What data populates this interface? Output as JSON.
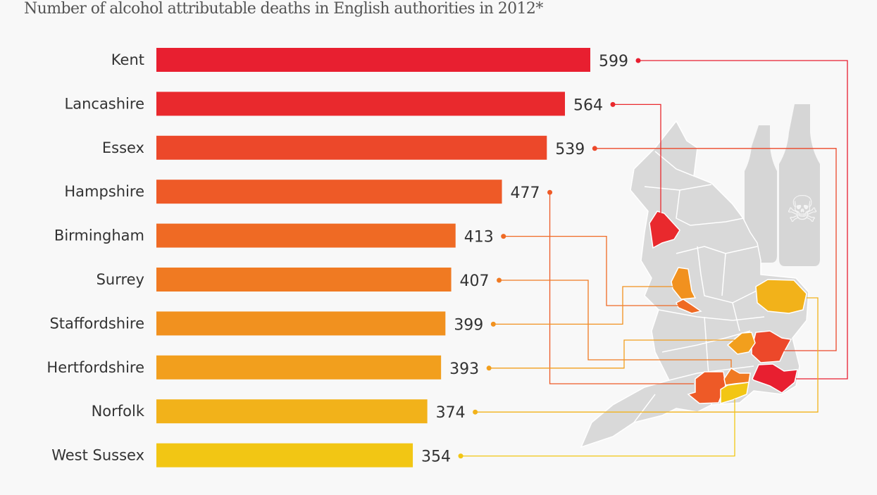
{
  "chart_data": {
    "type": "bar",
    "orientation": "horizontal",
    "title": "Number of alcohol attributable deaths in English authorities in 2012*",
    "categories": [
      "Kent",
      "Lancashire",
      "Essex",
      "Hampshire",
      "Birmingham",
      "Surrey",
      "Staffordshire",
      "Hertfordshire",
      "Norfolk",
      "West Sussex"
    ],
    "values": [
      599,
      564,
      539,
      477,
      413,
      407,
      399,
      393,
      374,
      354
    ],
    "colors": [
      "#e81f30",
      "#e9292d",
      "#ec482a",
      "#ee5a27",
      "#ef6a24",
      "#f07a22",
      "#f1911f",
      "#f29f1d",
      "#f2b21a",
      "#f2c614"
    ],
    "xlim": [
      0,
      600
    ],
    "grid": false,
    "legend": "none",
    "data_labels": true
  },
  "map": {
    "base_color": "#d9d9d9"
  }
}
